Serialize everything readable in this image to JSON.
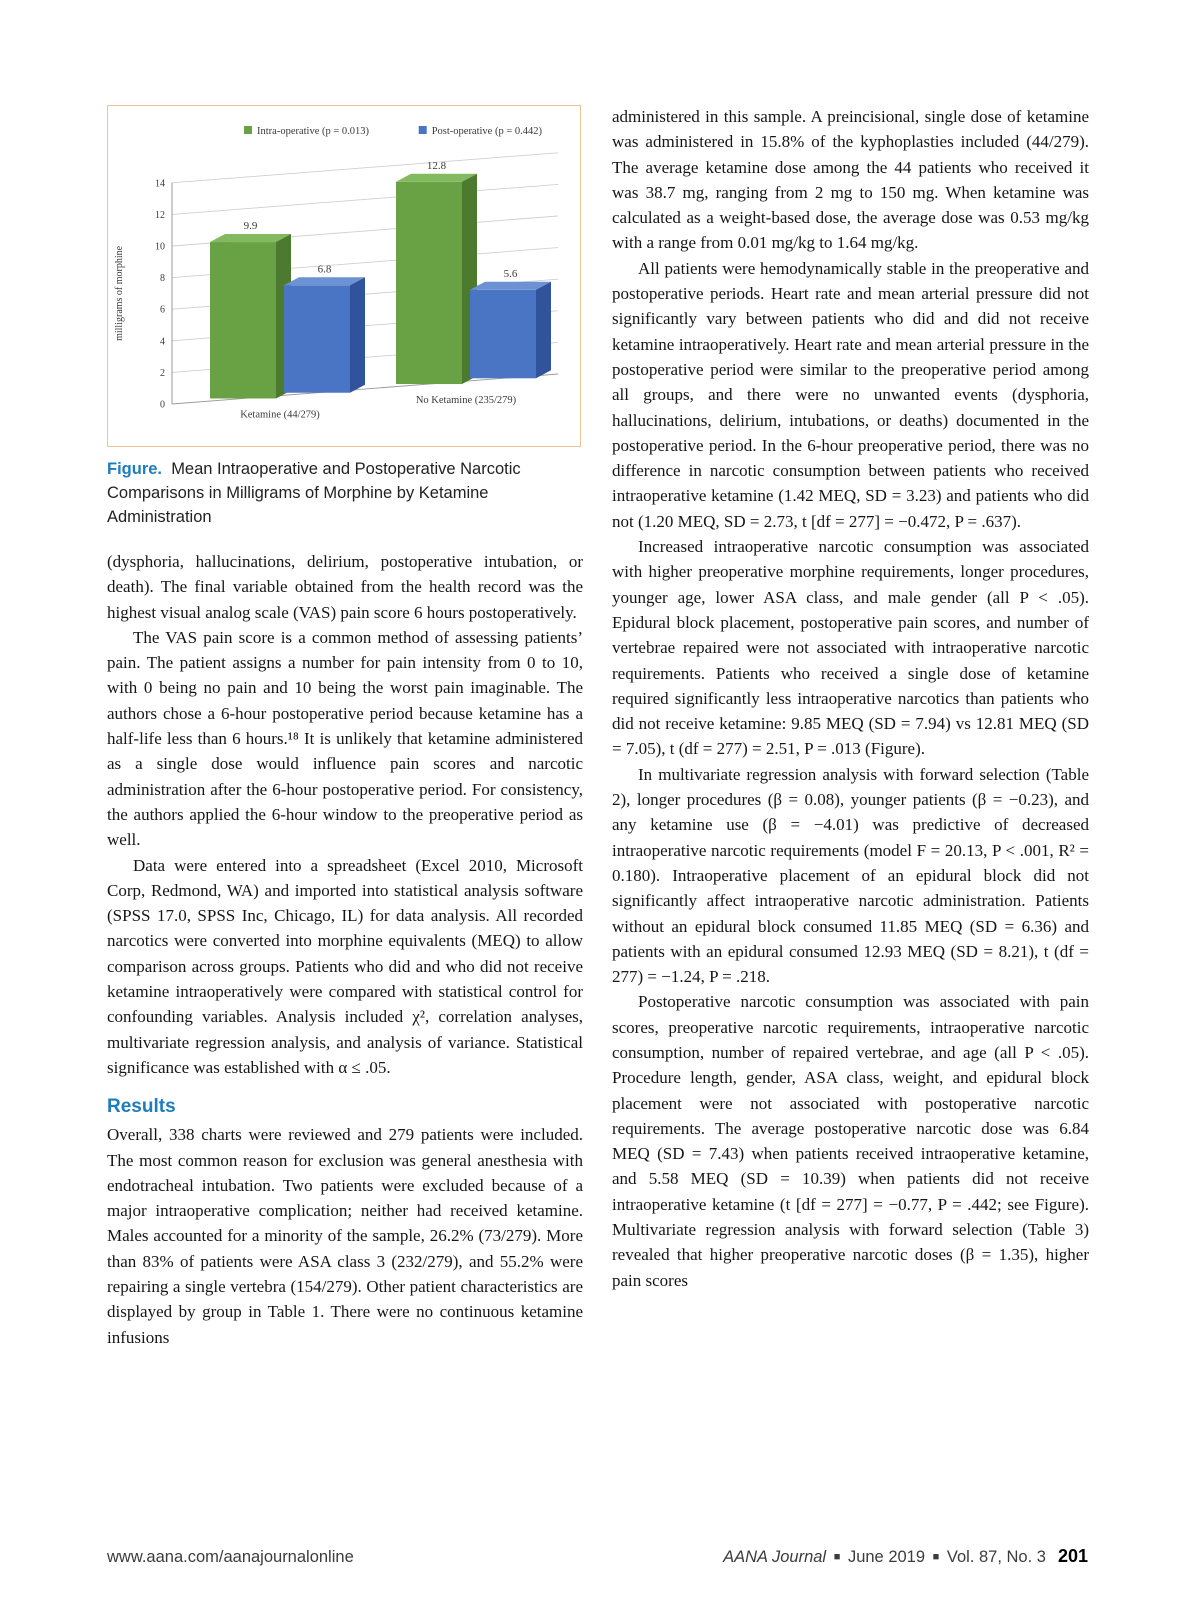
{
  "theme": {
    "accent_blue": "#1d7dbd",
    "figure_border": "#efc394"
  },
  "chart_data": {
    "type": "bar",
    "subtype": "3d-clustered-column",
    "categories": [
      "Ketamine (44/279)",
      "No Ketamine (235/279)"
    ],
    "series": [
      {
        "name": "Intra-operative (p = 0.013)",
        "values": [
          9.9,
          12.8
        ],
        "color": "#69a244",
        "color_top": "#83b95f",
        "color_side": "#4c7a2f"
      },
      {
        "name": "Post-operative (p = 0.442)",
        "values": [
          6.8,
          5.6
        ],
        "color": "#4a74c4",
        "color_top": "#6d92d4",
        "color_side": "#31539c"
      }
    ],
    "title": "",
    "xlabel": "",
    "ylabel": "milligrams of morphine",
    "ylim": [
      0,
      14
    ],
    "ytick_step": 2,
    "grid": true,
    "legend_position": "top"
  },
  "figure": {
    "caption_lead": "Figure.",
    "caption_text": "Mean Intraoperative and Postoperative Narcotic Comparisons in Milligrams of Morphine by Ketamine Administration"
  },
  "left": {
    "heading": "Results",
    "paragraphs": [
      {
        "text": "(dysphoria, hallucinations, delirium, postoperative intubation, or death). The final variable obtained from the health record was the highest visual analog scale (VAS) pain score 6 hours postoperatively."
      },
      {
        "text": "The VAS pain score is a common method of assessing patients’ pain. The patient assigns a number for pain intensity from 0 to 10, with 0 being no pain and 10 being the worst pain imaginable. The authors chose a 6-hour postoperative period because ketamine has a half-life less than 6 hours.¹⁸ It is unlikely that ketamine administered as a single dose would influence pain scores and narcotic administration after the 6-hour postoperative period. For consistency, the authors applied the 6-hour window to the preoperative period as well."
      },
      {
        "text": "Data were entered into a spreadsheet (Excel 2010, Microsoft Corp, Redmond, WA) and imported into statistical analysis software (SPSS 17.0, SPSS Inc, Chicago, IL) for data analysis. All recorded narcotics were converted into morphine equivalents (MEQ) to allow comparison across groups. Patients who did and who did not receive ketamine intraoperatively were compared with statistical control for confounding variables. Analysis included χ², correlation analyses, multivariate regression analysis, and analysis of variance. Statistical significance was established with α ≤ .05."
      },
      {
        "text": "Overall, 338 charts were reviewed and 279 patients were included. The most common reason for exclusion was general anesthesia with endotracheal intubation. Two patients were excluded because of a major intraoperative complication; neither had received ketamine. Males accounted for a minority of the sample, 26.2% (73/279). More than 83% of patients were ASA class 3 (232/279), and 55.2% were repairing a single vertebra (154/279). Other patient characteristics are displayed by group in Table 1. There were no continuous ketamine infusions"
      }
    ]
  },
  "right": {
    "paragraphs": [
      {
        "text": "administered in this sample. A preincisional, single dose of ketamine was administered in 15.8% of the kyphoplasties included (44/279). The average ketamine dose among the 44 patients who received it was 38.7 mg, ranging from 2 mg to 150 mg. When ketamine was calculated as a weight-based dose, the average dose was 0.53 mg/kg with a range from 0.01 mg/kg to 1.64 mg/kg."
      },
      {
        "text": "All patients were hemodynamically stable in the preoperative and postoperative periods. Heart rate and mean arterial pressure did not significantly vary between patients who did and did not receive ketamine intraoperatively. Heart rate and mean arterial pressure in the postoperative period were similar to the preoperative period among all groups, and there were no unwanted events (dysphoria, hallucinations, delirium, intubations, or deaths) documented in the postoperative period. In the 6-hour preoperative period, there was no difference in narcotic consumption between patients who received intraoperative ketamine (1.42 MEQ, SD = 3.23) and patients who did not (1.20 MEQ, SD = 2.73, t [df = 277] = −0.472, P = .637)."
      },
      {
        "text": "Increased intraoperative narcotic consumption was associated with higher preoperative morphine requirements, longer procedures, younger age, lower ASA class, and male gender (all P < .05). Epidural block placement, postoperative pain scores, and number of vertebrae repaired were not associated with intraoperative narcotic requirements. Patients who received a single dose of ketamine required significantly less intraoperative narcotics than patients who did not receive ketamine: 9.85 MEQ (SD = 7.94) vs 12.81 MEQ (SD = 7.05), t (df = 277) = 2.51, P = .013 (Figure)."
      },
      {
        "text": "In multivariate regression analysis with forward selection (Table 2), longer procedures (β = 0.08), younger patients (β = −0.23), and any ketamine use (β = −4.01) was predictive of decreased intraoperative narcotic requirements (model F = 20.13, P < .001, R² = 0.180). Intraoperative placement of an epidural block did not significantly affect intraoperative narcotic administration. Patients without an epidural block consumed 11.85 MEQ (SD = 6.36) and patients with an epidural consumed 12.93 MEQ (SD = 8.21), t (df = 277) = −1.24, P = .218."
      },
      {
        "text": "Postoperative narcotic consumption was associated with pain scores, preoperative narcotic requirements, intraoperative narcotic consumption, number of repaired vertebrae, and age (all P < .05). Procedure length, gender, ASA class, weight, and epidural block placement were not associated with postoperative narcotic requirements. The average postoperative narcotic dose was 6.84 MEQ (SD = 7.43) when patients received intraoperative ketamine, and 5.58 MEQ (SD = 10.39) when patients did not receive intraoperative ketamine (t [df = 277] = −0.77, P = .442; see Figure). Multivariate regression analysis with forward selection (Table 3) revealed that higher preoperative narcotic doses (β = 1.35), higher pain scores"
      }
    ]
  },
  "footer": {
    "url": "www.aana.com/aanajournalonline",
    "journal": "AANA Journal",
    "separator": "■",
    "issue": "June 2019",
    "volume": "Vol. 87, No. 3",
    "page": "201"
  }
}
